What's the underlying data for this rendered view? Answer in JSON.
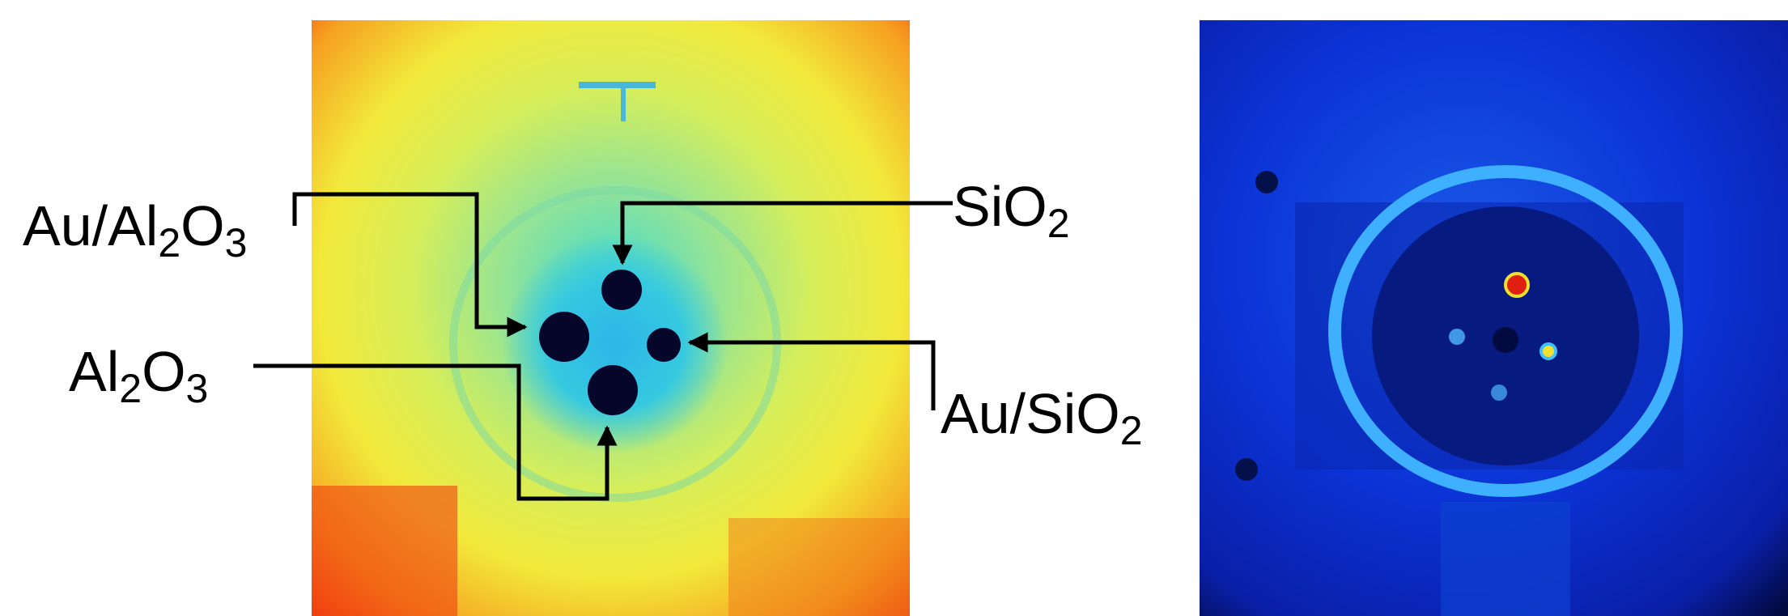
{
  "labels": [
    {
      "parts": [
        "Au/Al",
        "2",
        "O",
        "3"
      ]
    },
    {
      "parts": [
        "SiO",
        "2"
      ]
    },
    {
      "parts": [
        "Al",
        "2",
        "O",
        "3"
      ]
    },
    {
      "parts": [
        "Au/SiO",
        "2"
      ]
    }
  ]
}
